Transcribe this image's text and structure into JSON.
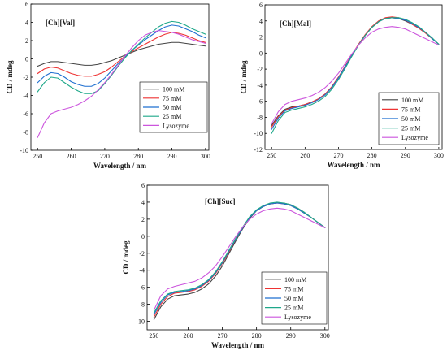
{
  "chart_data": [
    {
      "type": "line",
      "title": "[Ch][Val]",
      "xlabel": "Wavelength / nm",
      "ylabel": "CD / mdeg",
      "xlim": [
        248,
        301
      ],
      "ylim": [
        -10,
        6
      ],
      "xticks": [
        250,
        260,
        270,
        280,
        290,
        300
      ],
      "yticks": [
        -10,
        -8,
        -6,
        -4,
        -2,
        0,
        2,
        4,
        6
      ],
      "legend_position": "bottom-right",
      "x": [
        250,
        252,
        254,
        256,
        258,
        260,
        262,
        264,
        266,
        268,
        270,
        272,
        274,
        276,
        278,
        280,
        282,
        284,
        286,
        288,
        290,
        292,
        294,
        296,
        298,
        300
      ],
      "series": [
        {
          "name": "100 mM",
          "color": "#444444",
          "values": [
            -0.8,
            -0.5,
            -0.3,
            -0.3,
            -0.4,
            -0.5,
            -0.6,
            -0.7,
            -0.7,
            -0.6,
            -0.4,
            -0.2,
            0.1,
            0.4,
            0.7,
            1.0,
            1.2,
            1.4,
            1.6,
            1.7,
            1.8,
            1.8,
            1.7,
            1.6,
            1.5,
            1.4
          ]
        },
        {
          "name": "75 mM",
          "color": "#ee3333",
          "values": [
            -1.6,
            -1.1,
            -0.9,
            -1.0,
            -1.3,
            -1.6,
            -1.8,
            -1.9,
            -1.9,
            -1.7,
            -1.4,
            -0.9,
            -0.3,
            0.3,
            0.8,
            1.2,
            1.6,
            2.0,
            2.4,
            2.7,
            2.9,
            2.8,
            2.6,
            2.3,
            2.0,
            1.8
          ]
        },
        {
          "name": "50 mM",
          "color": "#1f6fd0",
          "values": [
            -2.6,
            -1.9,
            -1.5,
            -1.6,
            -2.0,
            -2.5,
            -2.8,
            -3.0,
            -3.0,
            -2.7,
            -2.1,
            -1.3,
            -0.5,
            0.2,
            0.9,
            1.5,
            2.1,
            2.6,
            3.1,
            3.5,
            3.7,
            3.6,
            3.3,
            3.0,
            2.6,
            2.3
          ]
        },
        {
          "name": "25 mM",
          "color": "#1fa88a",
          "values": [
            -3.6,
            -2.6,
            -2.0,
            -2.1,
            -2.6,
            -3.1,
            -3.5,
            -3.8,
            -3.8,
            -3.5,
            -2.7,
            -1.8,
            -0.8,
            0.1,
            0.9,
            1.6,
            2.3,
            2.9,
            3.5,
            3.9,
            4.1,
            4.0,
            3.7,
            3.3,
            3.0,
            2.7
          ]
        },
        {
          "name": "Lysozyme",
          "color": "#cc55dd",
          "values": [
            -8.6,
            -7.0,
            -6.0,
            -5.7,
            -5.5,
            -5.3,
            -5.0,
            -4.6,
            -4.1,
            -3.4,
            -2.6,
            -1.7,
            -0.7,
            0.3,
            1.2,
            2.0,
            2.6,
            2.9,
            3.1,
            3.0,
            2.9,
            2.7,
            2.4,
            2.1,
            1.9,
            1.7
          ]
        }
      ]
    },
    {
      "type": "line",
      "title": "[Ch][Mal]",
      "xlabel": "Wavelength / nm",
      "ylabel": "CD / mdeg",
      "xlim": [
        248,
        301
      ],
      "ylim": [
        -12,
        6
      ],
      "xticks": [
        250,
        260,
        270,
        280,
        290,
        300
      ],
      "yticks": [
        -12,
        -10,
        -8,
        -6,
        -4,
        -2,
        0,
        2,
        4,
        6
      ],
      "legend_position": "bottom-right",
      "x": [
        250,
        252,
        254,
        256,
        258,
        260,
        262,
        264,
        266,
        268,
        270,
        272,
        274,
        276,
        278,
        280,
        282,
        284,
        286,
        288,
        290,
        292,
        294,
        296,
        298,
        300
      ],
      "series": [
        {
          "name": "100 mM",
          "color": "#444444",
          "values": [
            -9.0,
            -7.8,
            -7.0,
            -6.7,
            -6.6,
            -6.4,
            -6.1,
            -5.7,
            -5.1,
            -4.2,
            -3.0,
            -1.7,
            -0.3,
            1.0,
            2.2,
            3.2,
            3.9,
            4.3,
            4.4,
            4.3,
            4.0,
            3.6,
            3.1,
            2.5,
            1.8,
            1.1
          ]
        },
        {
          "name": "75 mM",
          "color": "#ee3333",
          "values": [
            -9.2,
            -7.9,
            -7.1,
            -6.8,
            -6.6,
            -6.4,
            -6.1,
            -5.7,
            -5.1,
            -4.2,
            -3.0,
            -1.6,
            -0.2,
            1.1,
            2.3,
            3.3,
            4.0,
            4.4,
            4.5,
            4.4,
            4.1,
            3.6,
            3.1,
            2.5,
            1.8,
            1.1
          ]
        },
        {
          "name": "50 mM",
          "color": "#1f6fd0",
          "values": [
            -9.5,
            -8.1,
            -7.2,
            -6.9,
            -6.7,
            -6.5,
            -6.2,
            -5.8,
            -5.2,
            -4.3,
            -3.1,
            -1.7,
            -0.3,
            1.0,
            2.2,
            3.2,
            3.9,
            4.3,
            4.4,
            4.3,
            4.1,
            3.7,
            3.2,
            2.6,
            1.8,
            1.1
          ]
        },
        {
          "name": "25 mM",
          "color": "#1fa88a",
          "values": [
            -10.0,
            -8.4,
            -7.4,
            -7.1,
            -6.9,
            -6.7,
            -6.4,
            -6.0,
            -5.4,
            -4.5,
            -3.3,
            -1.9,
            -0.4,
            1.0,
            2.2,
            3.2,
            3.9,
            4.3,
            4.4,
            4.4,
            4.2,
            3.8,
            3.3,
            2.6,
            1.9,
            1.1
          ]
        },
        {
          "name": "Lysozyme",
          "color": "#cc55dd",
          "values": [
            -8.8,
            -7.3,
            -6.4,
            -6.0,
            -5.8,
            -5.6,
            -5.3,
            -4.9,
            -4.3,
            -3.5,
            -2.5,
            -1.3,
            -0.1,
            1.0,
            1.9,
            2.6,
            3.0,
            3.2,
            3.3,
            3.2,
            3.0,
            2.6,
            2.2,
            1.8,
            1.4,
            1.0
          ]
        }
      ]
    },
    {
      "type": "line",
      "title": "[Ch][Suc]",
      "xlabel": "Wavelength / nm",
      "ylabel": "CD / mdeg",
      "xlim": [
        248,
        301
      ],
      "ylim": [
        -11,
        6
      ],
      "xticks": [
        250,
        260,
        270,
        280,
        290,
        300
      ],
      "yticks": [
        -10,
        -8,
        -6,
        -4,
        -2,
        0,
        2,
        4,
        6
      ],
      "legend_position": "bottom-right",
      "x": [
        250,
        252,
        254,
        256,
        258,
        260,
        262,
        264,
        266,
        268,
        270,
        272,
        274,
        276,
        278,
        280,
        282,
        284,
        286,
        288,
        290,
        292,
        294,
        296,
        298,
        300
      ],
      "series": [
        {
          "name": "100 mM",
          "color": "#444444",
          "values": [
            -9.8,
            -8.3,
            -7.4,
            -7.0,
            -6.9,
            -6.8,
            -6.6,
            -6.2,
            -5.6,
            -4.7,
            -3.5,
            -2.0,
            -0.5,
            0.9,
            2.1,
            3.0,
            3.5,
            3.8,
            3.9,
            3.9,
            3.7,
            3.3,
            2.8,
            2.2,
            1.6,
            1.0
          ]
        },
        {
          "name": "75 mM",
          "color": "#ee3333",
          "values": [
            -9.5,
            -8.0,
            -7.1,
            -6.7,
            -6.6,
            -6.5,
            -6.3,
            -5.9,
            -5.3,
            -4.4,
            -3.2,
            -1.8,
            -0.3,
            1.0,
            2.2,
            3.0,
            3.5,
            3.8,
            3.9,
            3.8,
            3.6,
            3.2,
            2.7,
            2.2,
            1.6,
            1.0
          ]
        },
        {
          "name": "50 mM",
          "color": "#1f6fd0",
          "values": [
            -9.2,
            -7.8,
            -6.9,
            -6.6,
            -6.5,
            -6.4,
            -6.2,
            -5.8,
            -5.2,
            -4.3,
            -3.1,
            -1.7,
            -0.3,
            1.0,
            2.2,
            3.0,
            3.5,
            3.8,
            3.9,
            3.8,
            3.6,
            3.2,
            2.7,
            2.2,
            1.6,
            1.0
          ]
        },
        {
          "name": "25 mM",
          "color": "#1fa88a",
          "values": [
            -9.0,
            -7.6,
            -6.8,
            -6.5,
            -6.4,
            -6.3,
            -6.1,
            -5.7,
            -5.1,
            -4.2,
            -3.0,
            -1.6,
            -0.2,
            1.1,
            2.3,
            3.1,
            3.6,
            3.9,
            4.0,
            3.9,
            3.7,
            3.3,
            2.8,
            2.2,
            1.6,
            1.0
          ]
        },
        {
          "name": "Lysozyme",
          "color": "#cc55dd",
          "values": [
            -8.7,
            -7.0,
            -6.2,
            -5.9,
            -5.7,
            -5.5,
            -5.3,
            -4.9,
            -4.3,
            -3.5,
            -2.4,
            -1.2,
            0.0,
            1.1,
            2.0,
            2.6,
            3.0,
            3.2,
            3.3,
            3.2,
            3.0,
            2.6,
            2.2,
            1.8,
            1.4,
            1.0
          ]
        }
      ]
    }
  ]
}
